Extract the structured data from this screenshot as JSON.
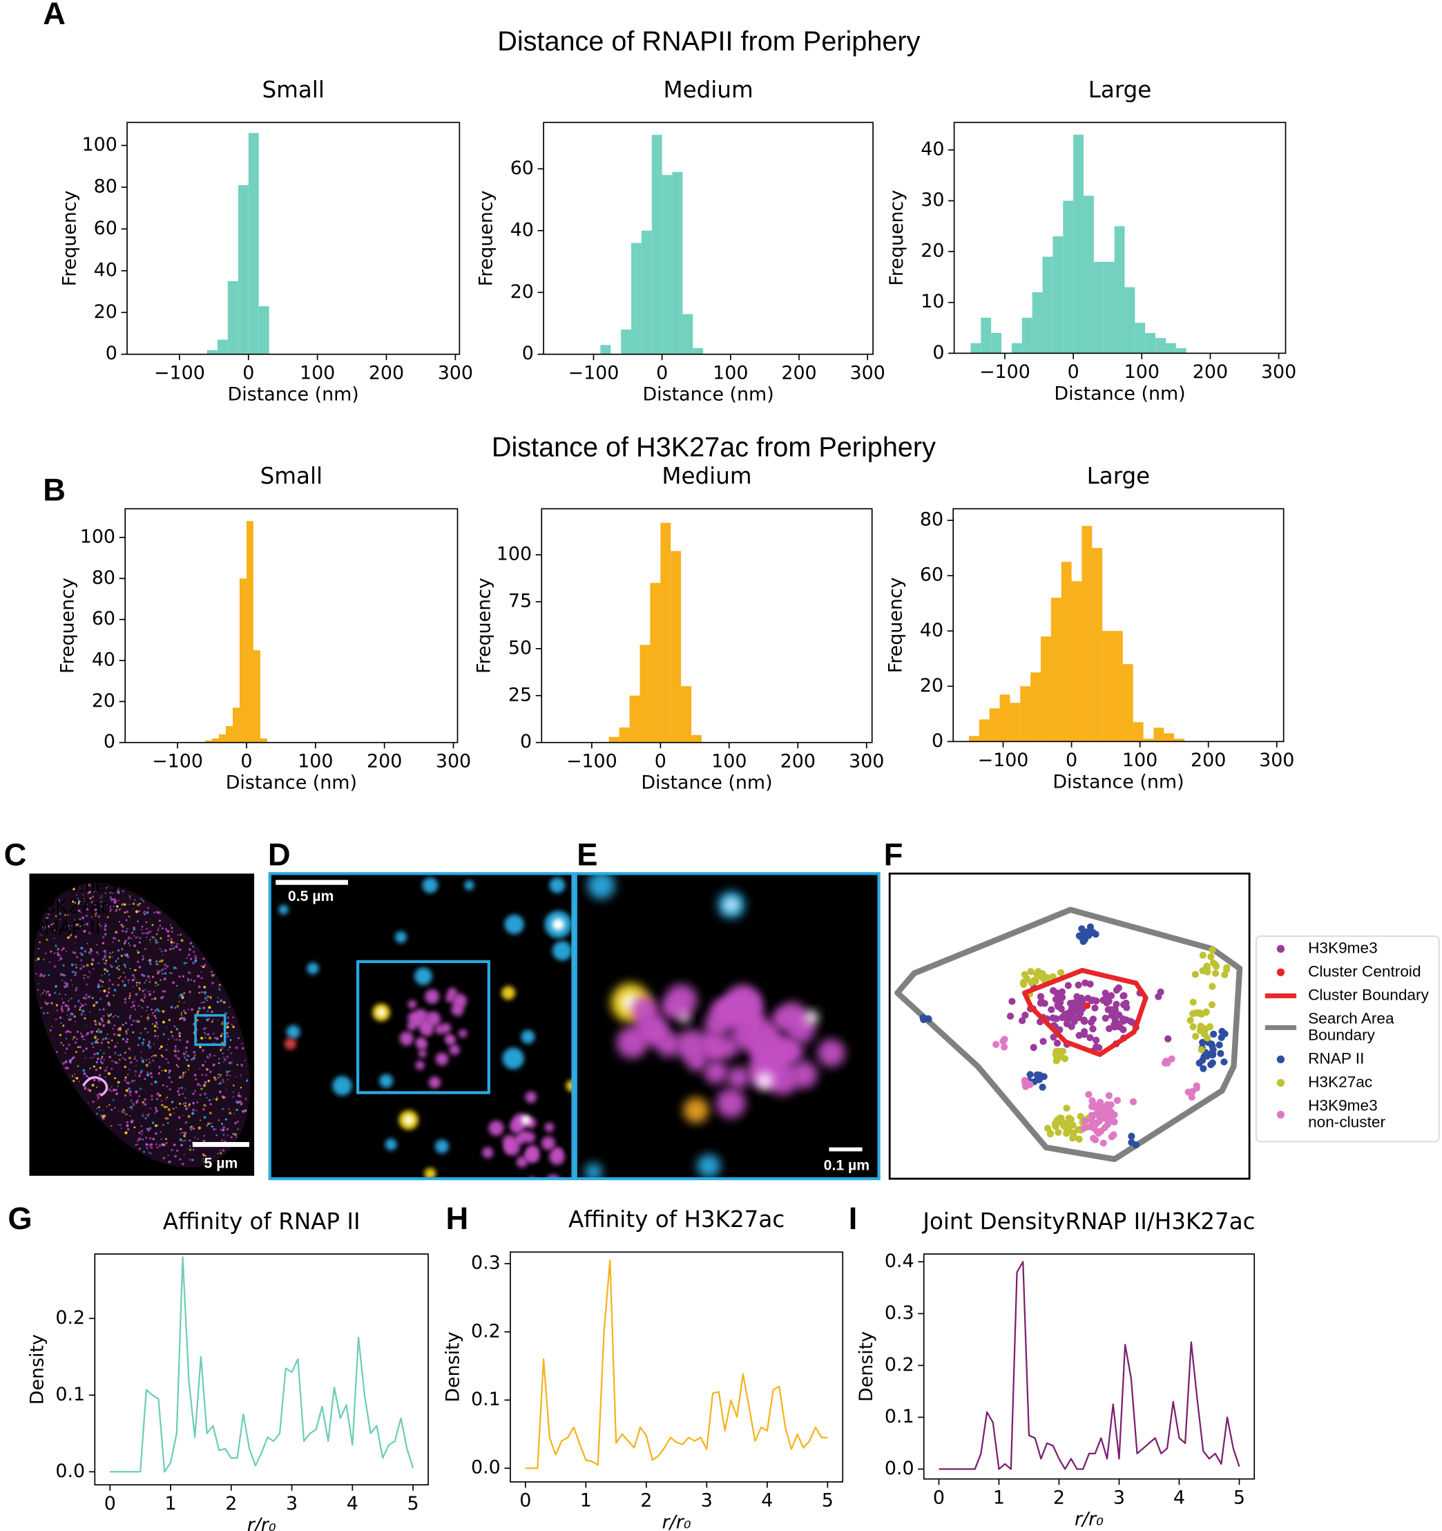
{
  "figure": {
    "panel_labels": [
      "A",
      "B",
      "C",
      "D",
      "E",
      "F",
      "G",
      "H",
      "I"
    ],
    "headings": [
      "Distance of RNAPII from Periphery",
      "Distance of H3K27ac from Periphery"
    ]
  },
  "micrographs": {
    "channels": [
      {
        "name": "H3K9me3",
        "color": "#c24fc4"
      },
      {
        "name": "H3K27ac",
        "color": "#f3d21b"
      },
      {
        "name": "RNAP II",
        "color": "#2aa9e0"
      }
    ],
    "scale_bars": [
      "5 µm",
      "0.5 µm",
      "0.1 µm"
    ]
  },
  "cluster_plot": {
    "legend": [
      {
        "lines": [
          "H3K9me3"
        ],
        "color": "#9b3a9b",
        "kind": "dot"
      },
      {
        "lines": [
          "Cluster Centroid"
        ],
        "color": "#e8262a",
        "kind": "dot"
      },
      {
        "lines": [
          "Cluster Boundary"
        ],
        "color": "#e8262a",
        "kind": "line"
      },
      {
        "lines": [
          "Search Area",
          "Boundary"
        ],
        "color": "#808080",
        "kind": "line"
      },
      {
        "lines": [
          "RNAP II"
        ],
        "color": "#2e4fa0",
        "kind": "dot"
      },
      {
        "lines": [
          "H3K27ac"
        ],
        "color": "#bfc232",
        "kind": "dot"
      },
      {
        "lines": [
          "H3K9me3",
          "non-cluster"
        ],
        "color": "#df79c4",
        "kind": "dot"
      }
    ]
  },
  "chart_data": [
    {
      "type": "histogram",
      "title": "Small",
      "xlabel": "Distance (nm)",
      "ylabel": "Frequency",
      "color": "#73d2bf",
      "bins": [
        -60,
        -45,
        -30,
        -15,
        0,
        15,
        30
      ],
      "values": [
        2,
        7,
        35,
        81,
        106,
        23
      ],
      "xlim": [
        -176,
        306
      ],
      "xticks": [
        {
          "value": -100,
          "label": "−100"
        },
        0,
        100,
        200,
        300
      ],
      "ylim": [
        0,
        111
      ],
      "yticks": [
        0,
        20,
        40,
        60,
        80,
        100
      ]
    },
    {
      "type": "histogram",
      "title": "Medium",
      "xlabel": "Distance (nm)",
      "ylabel": "Frequency",
      "color": "#73d2bf",
      "bins": [
        -90,
        -75,
        -60,
        -45,
        -30,
        -15,
        0,
        15,
        30,
        45,
        60
      ],
      "values": [
        3,
        0,
        8,
        36,
        40,
        71,
        58,
        59,
        13,
        2
      ],
      "xlim": [
        -173,
        308
      ],
      "xticks": [
        {
          "value": -100,
          "label": "−100"
        },
        0,
        100,
        200,
        300
      ],
      "ylim": [
        0,
        75
      ],
      "yticks": [
        0,
        20,
        40,
        60
      ]
    },
    {
      "type": "histogram",
      "title": "Large",
      "xlabel": "Distance (nm)",
      "ylabel": "Frequency",
      "color": "#73d2bf",
      "bins": [
        -150,
        -135,
        -120,
        -105,
        -90,
        -75,
        -60,
        -45,
        -30,
        -15,
        0,
        15,
        30,
        45,
        60,
        75,
        90,
        105,
        120,
        135,
        150,
        165
      ],
      "values": [
        2,
        7,
        4,
        0,
        2,
        7,
        12,
        19,
        23,
        30,
        43,
        31,
        18,
        18,
        25,
        13,
        6,
        4,
        3,
        2,
        1
      ],
      "xlim": [
        -174,
        310
      ],
      "xticks": [
        {
          "value": -100,
          "label": "−100"
        },
        0,
        100,
        200,
        300
      ],
      "ylim": [
        0,
        45.4
      ],
      "yticks": [
        0,
        10,
        20,
        30,
        40
      ]
    },
    {
      "type": "histogram",
      "title": "Small",
      "xlabel": "Distance (nm)",
      "ylabel": "Frequency",
      "color": "#f8b01b",
      "bins": [
        -60,
        -50,
        -40,
        -30,
        -20,
        -10,
        0,
        10,
        20,
        30
      ],
      "values": [
        1,
        2,
        4,
        8,
        17,
        80,
        108,
        45,
        2
      ],
      "xlim": [
        -176,
        306
      ],
      "xticks": [
        {
          "value": -100,
          "label": "−100"
        },
        0,
        100,
        200,
        300
      ],
      "ylim": [
        0,
        114
      ],
      "yticks": [
        0,
        20,
        40,
        60,
        80,
        100
      ]
    },
    {
      "type": "histogram",
      "title": "Medium",
      "xlabel": "Distance (nm)",
      "ylabel": "Frequency",
      "color": "#f8b01b",
      "bins": [
        -75,
        -60,
        -45,
        -30,
        -15,
        0,
        15,
        30,
        45,
        60
      ],
      "values": [
        3,
        8,
        25,
        52,
        85,
        117,
        102,
        30,
        4
      ],
      "xlim": [
        -173,
        308
      ],
      "xticks": [
        {
          "value": -100,
          "label": "−100"
        },
        0,
        100,
        200,
        300
      ],
      "ylim": [
        0,
        124.5
      ],
      "yticks": [
        0,
        25,
        50,
        75,
        100
      ]
    },
    {
      "type": "histogram",
      "title": "Large",
      "xlabel": "Distance (nm)",
      "ylabel": "Frequency",
      "color": "#f8b01b",
      "bins": [
        -150,
        -135,
        -120,
        -105,
        -90,
        -75,
        -60,
        -45,
        -30,
        -15,
        0,
        15,
        30,
        45,
        60,
        75,
        90,
        105,
        120,
        135,
        150,
        165
      ],
      "values": [
        2,
        8,
        12,
        17,
        14,
        20,
        25,
        38,
        52,
        65,
        58,
        78,
        70,
        40,
        40,
        28,
        7,
        1,
        5,
        3,
        1
      ],
      "xlim": [
        -173,
        310
      ],
      "xticks": [
        {
          "value": -100,
          "label": "−100"
        },
        0,
        100,
        200,
        300
      ],
      "ylim": [
        0,
        84.2
      ],
      "yticks": [
        0,
        20,
        40,
        60,
        80
      ]
    },
    {
      "type": "line",
      "title": "Affinity of RNAP II",
      "xlabel": "r/r₀",
      "ylabel": "Density",
      "color": "#6dcdb8",
      "x": [
        0,
        0.1,
        0.2,
        0.3,
        0.4,
        0.5,
        0.6,
        0.7,
        0.8,
        0.9,
        1,
        1.1,
        1.2,
        1.3,
        1.4,
        1.5,
        1.6,
        1.7,
        1.8,
        1.9,
        2,
        2.1,
        2.2,
        2.3,
        2.4,
        2.5,
        2.6,
        2.7,
        2.8,
        2.9,
        3,
        3.1,
        3.2,
        3.3,
        3.4,
        3.5,
        3.6,
        3.7,
        3.8,
        3.9,
        4,
        4.1,
        4.2,
        4.3,
        4.4,
        4.5,
        4.6,
        4.7,
        4.8,
        4.9,
        5
      ],
      "values": [
        0,
        0,
        0,
        0,
        0,
        0,
        0.107,
        0.1,
        0.095,
        0,
        0.012,
        0.05,
        0.28,
        0.12,
        0.045,
        0.15,
        0.05,
        0.06,
        0.028,
        0.03,
        0.018,
        0.018,
        0.075,
        0.03,
        0.008,
        0.025,
        0.045,
        0.04,
        0.05,
        0.135,
        0.13,
        0.147,
        0.04,
        0.05,
        0.055,
        0.085,
        0.04,
        0.11,
        0.07,
        0.087,
        0.035,
        0.175,
        0.1,
        0.05,
        0.06,
        0.018,
        0.035,
        0.04,
        0.07,
        0.03,
        0.005
      ],
      "xlim": [
        -0.25,
        5.25
      ],
      "xticks": [
        0,
        1,
        2,
        3,
        4,
        5
      ],
      "ylim": [
        -0.017,
        0.284
      ],
      "yticks": [
        {
          "value": 0,
          "label": "0.0"
        },
        0.1,
        0.2
      ]
    },
    {
      "type": "line",
      "title": "Affinity of H3K27ac",
      "xlabel": "r/r₀",
      "ylabel": "Density",
      "color": "#f5b31d",
      "x": [
        0,
        0.1,
        0.2,
        0.3,
        0.4,
        0.5,
        0.6,
        0.7,
        0.8,
        0.9,
        1,
        1.1,
        1.2,
        1.3,
        1.4,
        1.5,
        1.6,
        1.7,
        1.8,
        1.9,
        2,
        2.1,
        2.2,
        2.3,
        2.4,
        2.5,
        2.6,
        2.7,
        2.8,
        2.9,
        3,
        3.1,
        3.2,
        3.3,
        3.4,
        3.5,
        3.6,
        3.7,
        3.8,
        3.9,
        4,
        4.1,
        4.2,
        4.3,
        4.4,
        4.5,
        4.6,
        4.7,
        4.8,
        4.9,
        5
      ],
      "values": [
        0,
        0,
        0,
        0.16,
        0.045,
        0.02,
        0.04,
        0.045,
        0.06,
        0.035,
        0.012,
        0.01,
        0.005,
        0.2,
        0.305,
        0.037,
        0.05,
        0.04,
        0.03,
        0.06,
        0.048,
        0.012,
        0.018,
        0.03,
        0.045,
        0.038,
        0.035,
        0.045,
        0.04,
        0.045,
        0.028,
        0.11,
        0.112,
        0.055,
        0.1,
        0.075,
        0.138,
        0.09,
        0.04,
        0.06,
        0.055,
        0.115,
        0.12,
        0.06,
        0.028,
        0.05,
        0.03,
        0.04,
        0.06,
        0.045,
        0.045
      ],
      "xlim": [
        -0.25,
        5.25
      ],
      "xticks": [
        0,
        1,
        2,
        3,
        4,
        5
      ],
      "ylim": [
        -0.02,
        0.317
      ],
      "yticks": [
        {
          "value": 0,
          "label": "0.0"
        },
        0.1,
        0.2,
        0.3
      ]
    },
    {
      "type": "line",
      "title": "Joint DensityRNAP II/H3K27ac",
      "xlabel": "r/r₀",
      "ylabel": "Density",
      "color": "#7b1f73",
      "x": [
        0,
        0.1,
        0.2,
        0.3,
        0.4,
        0.5,
        0.6,
        0.7,
        0.8,
        0.9,
        1,
        1.1,
        1.2,
        1.3,
        1.4,
        1.5,
        1.6,
        1.7,
        1.8,
        1.9,
        2,
        2.1,
        2.2,
        2.3,
        2.4,
        2.5,
        2.6,
        2.7,
        2.8,
        2.9,
        3,
        3.1,
        3.2,
        3.3,
        3.4,
        3.5,
        3.6,
        3.7,
        3.8,
        3.9,
        4,
        4.1,
        4.2,
        4.3,
        4.4,
        4.5,
        4.6,
        4.7,
        4.8,
        4.9,
        5
      ],
      "values": [
        0,
        0,
        0,
        0,
        0,
        0,
        0,
        0.03,
        0.11,
        0.09,
        0,
        0.01,
        0,
        0.38,
        0.4,
        0.065,
        0.06,
        0.02,
        0.05,
        0.045,
        0.02,
        0,
        0.02,
        0,
        0,
        0.03,
        0.03,
        0.06,
        0.02,
        0.125,
        0.02,
        0.24,
        0.175,
        0.03,
        0.04,
        0.05,
        0.06,
        0.03,
        0.04,
        0.13,
        0.06,
        0.05,
        0.245,
        0.135,
        0.035,
        0.02,
        0.03,
        0.01,
        0.1,
        0.04,
        0.005
      ],
      "xlim": [
        -0.25,
        5.25
      ],
      "xticks": [
        0,
        1,
        2,
        3,
        4,
        5
      ],
      "ylim": [
        -0.019,
        0.415
      ],
      "yticks": [
        {
          "value": 0,
          "label": "0.0"
        },
        0.1,
        0.2,
        0.3,
        0.4
      ]
    }
  ]
}
